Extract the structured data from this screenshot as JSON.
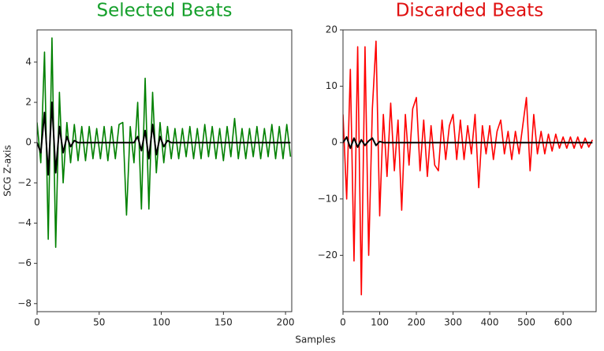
{
  "chart_data": [
    {
      "type": "line",
      "title": "Selected Beats",
      "title_color": "#16a02c",
      "ylabel": "SCG Z-axis",
      "xlabel": "Samples",
      "xlim": [
        0,
        205
      ],
      "ylim": [
        -8.4,
        5.6
      ],
      "xticks": [
        0,
        50,
        100,
        150,
        200
      ],
      "yticks": [
        {
          "value": -8,
          "label": "−8"
        },
        {
          "value": -6,
          "label": "−6"
        },
        {
          "value": -4,
          "label": "−4"
        },
        {
          "value": -2,
          "label": "−2"
        },
        0,
        2,
        4
      ],
      "x": [
        0,
        3,
        6,
        9,
        12,
        15,
        18,
        21,
        24,
        27,
        30,
        33,
        36,
        39,
        42,
        45,
        48,
        51,
        54,
        57,
        60,
        63,
        66,
        69,
        72,
        75,
        78,
        81,
        84,
        87,
        90,
        93,
        96,
        99,
        102,
        105,
        108,
        111,
        114,
        117,
        120,
        123,
        126,
        129,
        132,
        135,
        138,
        141,
        144,
        147,
        150,
        153,
        156,
        159,
        162,
        165,
        168,
        171,
        174,
        177,
        180,
        183,
        186,
        189,
        192,
        195,
        198,
        201,
        204
      ],
      "series": [
        {
          "color": "#008000",
          "values": [
            1,
            -1,
            4.5,
            -4.8,
            5.2,
            -5.2,
            2.5,
            -2,
            1,
            -1,
            0.9,
            -0.9,
            0.8,
            -0.9,
            0.8,
            -0.8,
            0.7,
            -0.8,
            0.8,
            -0.9,
            0.8,
            -0.8,
            0.9,
            1,
            -3.6,
            0.8,
            -1,
            2,
            -3.3,
            3.2,
            -3.3,
            2.5,
            -1.5,
            1,
            -1,
            0.8,
            -0.8,
            0.7,
            -0.8,
            0.7,
            -0.7,
            0.8,
            -0.8,
            0.7,
            -0.8,
            0.9,
            -0.7,
            0.8,
            -0.8,
            0.7,
            -0.9,
            0.8,
            -0.7,
            1.2,
            -0.8,
            0.7,
            -0.8,
            0.7,
            -0.7,
            0.8,
            -0.8,
            0.7,
            -0.7,
            0.9,
            -0.8,
            0.8,
            -0.8,
            0.9,
            -0.7
          ]
        },
        {
          "color": "#000000",
          "values": [
            0,
            -0.5,
            1.5,
            -1.6,
            2,
            -1.5,
            0.8,
            -0.5,
            0.3,
            -0.2,
            0.1,
            0,
            0,
            0,
            0,
            0,
            0,
            0,
            0,
            0,
            0,
            0,
            0,
            0,
            0,
            0,
            0,
            0.3,
            -0.4,
            0.6,
            -0.8,
            0.9,
            -0.6,
            0.3,
            -0.2,
            0.1,
            0,
            0,
            0,
            0,
            0,
            0,
            0,
            0,
            0,
            0,
            0,
            0,
            0,
            0,
            0,
            0,
            0,
            0,
            0,
            0,
            0,
            0,
            0,
            0,
            0,
            0,
            0,
            0,
            0,
            0,
            0,
            0,
            0
          ]
        }
      ]
    },
    {
      "type": "line",
      "title": "Discarded Beats",
      "title_color": "#e01010",
      "xlim": [
        0,
        690
      ],
      "ylim": [
        -30,
        20
      ],
      "xticks": [
        0,
        100,
        200,
        300,
        400,
        500,
        600
      ],
      "yticks": [
        {
          "value": -20,
          "label": "−20"
        },
        {
          "value": -10,
          "label": "−10"
        },
        0,
        10,
        20
      ],
      "x": [
        0,
        10,
        20,
        30,
        40,
        50,
        60,
        70,
        80,
        90,
        100,
        110,
        120,
        130,
        140,
        150,
        160,
        170,
        180,
        190,
        200,
        210,
        220,
        230,
        240,
        250,
        260,
        270,
        280,
        290,
        300,
        310,
        320,
        330,
        340,
        350,
        360,
        370,
        380,
        390,
        400,
        410,
        420,
        430,
        440,
        450,
        460,
        470,
        480,
        490,
        500,
        510,
        520,
        530,
        540,
        550,
        560,
        570,
        580,
        590,
        600,
        610,
        620,
        630,
        640,
        650,
        660,
        670,
        680
      ],
      "series": [
        {
          "color": "#ff0000",
          "values": [
            5,
            -10,
            13,
            -21,
            17,
            -27,
            17,
            -20,
            6,
            18,
            -13,
            5,
            -6,
            7,
            -5,
            4,
            -12,
            5,
            -4,
            6,
            8,
            -5,
            4,
            -6,
            3,
            -4,
            -5,
            4,
            -3,
            3,
            5,
            -3,
            4,
            -3,
            3,
            -2,
            5,
            -8,
            3,
            -2,
            3,
            -3,
            2,
            4,
            -2,
            2,
            -3,
            2,
            -2,
            3,
            8,
            -5,
            5,
            -2,
            2,
            -2,
            1.5,
            -1.5,
            1.5,
            -1,
            1,
            -1,
            1,
            -1,
            1,
            -1,
            0.8,
            -0.8,
            0.5
          ]
        },
        {
          "color": "#000000",
          "values": [
            0,
            1,
            -1,
            0.8,
            -0.8,
            0.5,
            -0.5,
            0.3,
            0.8,
            -0.5,
            0.2,
            0,
            0,
            0,
            0,
            0,
            0,
            0,
            0,
            0,
            0,
            0,
            0,
            0,
            0,
            0,
            0,
            0,
            0,
            0,
            0,
            0,
            0,
            0,
            0,
            0,
            0,
            0,
            0,
            0,
            0,
            0,
            0,
            0,
            0,
            0,
            0,
            0,
            0,
            0,
            0,
            0,
            0,
            0,
            0,
            0,
            0,
            0,
            0,
            0,
            0,
            0,
            0,
            0,
            0,
            0,
            0,
            0,
            0
          ]
        }
      ]
    }
  ]
}
